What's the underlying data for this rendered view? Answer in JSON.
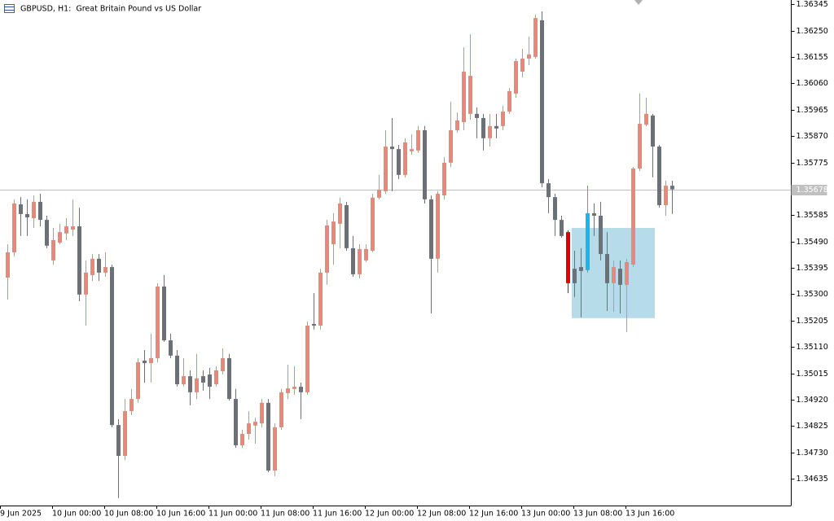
{
  "chart_data": {
    "type": "candlestick",
    "title": "GBPUSD, H1:  Great Britain Pound vs US Dollar",
    "categories": [
      "9 Jun 2025",
      null,
      null,
      null,
      null,
      null,
      null,
      null,
      "10 Jun 00:00",
      null,
      null,
      null,
      null,
      null,
      null,
      null,
      "10 Jun 08:00",
      null,
      null,
      null,
      null,
      null,
      null,
      null,
      "10 Jun 16:00",
      null,
      null,
      null,
      null,
      null,
      null,
      null,
      "11 Jun 00:00",
      null,
      null,
      null,
      null,
      null,
      null,
      null,
      "11 Jun 08:00",
      null,
      null,
      null,
      null,
      null,
      null,
      null,
      "11 Jun 16:00",
      null,
      null,
      null,
      null,
      null,
      null,
      null,
      "12 Jun 00:00",
      null,
      null,
      null,
      null,
      null,
      null,
      null,
      "12 Jun 08:00",
      null,
      null,
      null,
      null,
      null,
      null,
      null,
      "12 Jun 16:00",
      null,
      null,
      null,
      null,
      null,
      null,
      null,
      "13 Jun 00:00",
      null,
      null,
      null,
      null,
      null,
      null,
      null,
      "13 Jun 08:00",
      null,
      null,
      null,
      null,
      null,
      null,
      null,
      "13 Jun 16:00",
      null,
      null,
      null,
      null,
      null,
      null,
      null
    ],
    "open": [
      null,
      1.3536,
      1.35451,
      1.35624,
      1.35589,
      1.35574,
      1.35633,
      1.35568,
      1.35422,
      1.35486,
      1.35519,
      1.35533,
      1.35545,
      1.35299,
      1.35369,
      1.35428,
      1.35378,
      1.35398,
      1.34829,
      1.34718,
      1.34879,
      1.34923,
      1.35061,
      1.35052,
      1.3507,
      1.35328,
      1.35134,
      1.35079,
      1.34976,
      1.35005,
      1.34947,
      1.35005,
      1.35011,
      1.34976,
      1.35023,
      1.3507,
      1.34923,
      1.34756,
      1.34797,
      1.34827,
      1.34835,
      1.34909,
      1.34665,
      1.34821,
      1.34944,
      1.34959,
      1.34967,
      1.34947,
      1.35193,
      1.35187,
      1.35378,
      1.3548,
      1.35554,
      1.35621,
      1.35466,
      1.35372,
      1.35422,
      1.35457,
      1.35648,
      1.35671,
      1.35832,
      1.35823,
      1.3573,
      1.35815,
      1.35818,
      1.35891,
      1.35642,
      1.35428,
      1.35656,
      1.35774,
      1.35891,
      1.3592,
      1.3595,
      1.3595,
      1.35935,
      1.35862,
      1.35906,
      1.35906,
      1.35958,
      1.36023,
      1.36102,
      1.36149,
      1.36155,
      1.36287,
      1.357,
      1.3565,
      1.35568,
      1.35524,
      1.35392,
      1.35398,
      1.35387,
      1.35592,
      1.35583,
      1.35445,
      1.3534,
      1.35392,
      1.35334,
      1.35407,
      1.35753,
      1.35911,
      1.35944,
      1.35832,
      1.35621,
      1.35691
    ],
    "high": [
      null,
      1.3548,
      1.35642,
      1.3565,
      1.35642,
      1.35656,
      1.35662,
      1.35583,
      1.35539,
      1.35554,
      1.35574,
      1.35642,
      1.35612,
      1.35422,
      1.35445,
      1.35445,
      1.35451,
      1.35407,
      1.3485,
      1.34923,
      1.34959,
      1.3507,
      1.35099,
      1.35158,
      1.3534,
      1.35369,
      1.35158,
      1.35099,
      1.3507,
      1.35026,
      1.35085,
      1.35026,
      1.35035,
      1.35041,
      1.35105,
      1.35085,
      1.34959,
      1.34812,
      1.34879,
      1.34856,
      1.34923,
      1.34923,
      1.34835,
      1.34959,
      1.35046,
      1.35041,
      1.34982,
      1.35202,
      1.35304,
      1.35392,
      1.35568,
      1.35592,
      1.35648,
      1.35633,
      1.3551,
      1.3548,
      1.3548,
      1.35662,
      1.3573,
      1.35891,
      1.35935,
      1.35838,
      1.35862,
      1.35876,
      1.35906,
      1.35906,
      1.35656,
      1.35671,
      1.35794,
      1.35994,
      1.35955,
      1.3619,
      1.36237,
      1.35973,
      1.3595,
      1.3595,
      1.3595,
      1.35979,
      1.36043,
      1.36149,
      1.36184,
      1.36228,
      1.36307,
      1.36319,
      1.35715,
      1.35662,
      1.35583,
      1.3553,
      1.35457,
      1.35466,
      1.35691,
      1.35627,
      1.35633,
      1.35524,
      1.35422,
      1.35422,
      1.35428,
      1.35759,
      1.36023,
      1.36008,
      1.3595,
      1.35838,
      1.35709,
      1.35709
    ],
    "low": [
      null,
      1.35281,
      1.35436,
      1.3551,
      1.3551,
      1.35539,
      1.35545,
      1.35466,
      1.35407,
      1.3548,
      1.35495,
      1.3551,
      1.35275,
      1.35187,
      1.35348,
      1.35348,
      1.35363,
      1.34821,
      1.34566,
      1.34703,
      1.34865,
      1.34909,
      1.34982,
      1.34982,
      1.35055,
      1.35129,
      1.3507,
      1.34967,
      1.34967,
      1.349,
      1.34923,
      1.34953,
      1.34923,
      1.34967,
      1.35011,
      1.34917,
      1.34747,
      1.34747,
      1.34777,
      1.34762,
      1.34821,
      1.34659,
      1.34645,
      1.34812,
      1.34923,
      1.34938,
      1.3485,
      1.34938,
      1.35173,
      1.35173,
      1.35334,
      1.35407,
      1.35466,
      1.35457,
      1.35363,
      1.35357,
      1.35416,
      1.35451,
      1.35642,
      1.35662,
      1.35671,
      1.35715,
      1.35721,
      1.35803,
      1.35809,
      1.35627,
      1.35231,
      1.35378,
      1.35642,
      1.35759,
      1.35882,
      1.35891,
      1.35929,
      1.35862,
      1.35818,
      1.35832,
      1.35862,
      1.35891,
      1.3595,
      1.36008,
      1.36081,
      1.36125,
      1.36149,
      1.35686,
      1.35592,
      1.3551,
      1.35504,
      1.35304,
      1.3529,
      1.35217,
      1.35378,
      1.3551,
      1.35422,
      1.3524,
      1.35237,
      1.35231,
      1.35164,
      1.35398,
      1.35744,
      1.35906,
      1.35721,
      1.35612,
      1.35583,
      1.35589
    ],
    "close": [
      null,
      1.35451,
      1.35627,
      1.35589,
      1.35577,
      1.35633,
      1.35568,
      1.35475,
      1.35495,
      1.35524,
      1.35545,
      1.35545,
      1.35299,
      1.35378,
      1.35428,
      1.35378,
      1.35398,
      1.34829,
      1.34718,
      1.34879,
      1.34923,
      1.35055,
      1.35052,
      1.3507,
      1.35328,
      1.35134,
      1.35079,
      1.34976,
      1.35005,
      1.34947,
      1.34997,
      1.34982,
      1.34967,
      1.35026,
      1.3507,
      1.34923,
      1.34756,
      1.34797,
      1.34835,
      1.34841,
      1.34909,
      1.34665,
      1.34821,
      1.34947,
      1.34961,
      1.34967,
      1.34947,
      1.35187,
      1.35187,
      1.35378,
      1.35548,
      1.35562,
      1.35627,
      1.35466,
      1.35372,
      1.35463,
      1.35463,
      1.35648,
      1.35677,
      1.35832,
      1.35823,
      1.3573,
      1.35847,
      1.35823,
      1.35891,
      1.35642,
      1.35428,
      1.35662,
      1.35774,
      1.35891,
      1.35926,
      1.36102,
      1.36087,
      1.35935,
      1.35862,
      1.35906,
      1.35897,
      1.35958,
      1.36032,
      1.3614,
      1.36149,
      1.36164,
      1.36295,
      1.357,
      1.3565,
      1.35568,
      1.3551,
      1.3534,
      1.3534,
      1.35384,
      1.35592,
      1.35583,
      1.35445,
      1.3534,
      1.35398,
      1.35334,
      1.35416,
      1.35753,
      1.35914,
      1.3595,
      1.35832,
      1.35621,
      1.35691,
      1.35678
    ],
    "up_color": "#e8877c",
    "down_color": "#6c7178",
    "highlight": [
      {
        "index": 87,
        "color": "#e00000"
      },
      {
        "index": 90,
        "color": "#1ab4f0"
      }
    ],
    "zone": {
      "from": 88,
      "to": 100,
      "ylim": [
        1.35214,
        1.35539
      ],
      "color": "#add8e6"
    },
    "last_price": {
      "value": 1.35678,
      "label": "1.35678"
    },
    "ylim": [
      1.34542,
      1.3636
    ],
    "yticks": [
      {
        "value": 1.36345,
        "label": "1.36345"
      },
      {
        "value": 1.3625,
        "label": "1.36250"
      },
      {
        "value": 1.36155,
        "label": "1.36155"
      },
      {
        "value": 1.3606,
        "label": "1.36060"
      },
      {
        "value": 1.35965,
        "label": "1.35965"
      },
      {
        "value": 1.3587,
        "label": "1.35870"
      },
      {
        "value": 1.35775,
        "label": "1.35775"
      },
      {
        "value": 1.35585,
        "label": "1.35585"
      },
      {
        "value": 1.3549,
        "label": "1.35490"
      },
      {
        "value": 1.35395,
        "label": "1.35395"
      },
      {
        "value": 1.353,
        "label": "1.35300"
      },
      {
        "value": 1.35205,
        "label": "1.35205"
      },
      {
        "value": 1.3511,
        "label": "1.35110"
      },
      {
        "value": 1.35015,
        "label": "1.35015"
      },
      {
        "value": 1.3492,
        "label": "1.34920"
      },
      {
        "value": 1.34825,
        "label": "1.34825"
      },
      {
        "value": 1.3473,
        "label": "1.34730"
      },
      {
        "value": 1.34635,
        "label": "1.34635"
      }
    ],
    "grid": false
  }
}
